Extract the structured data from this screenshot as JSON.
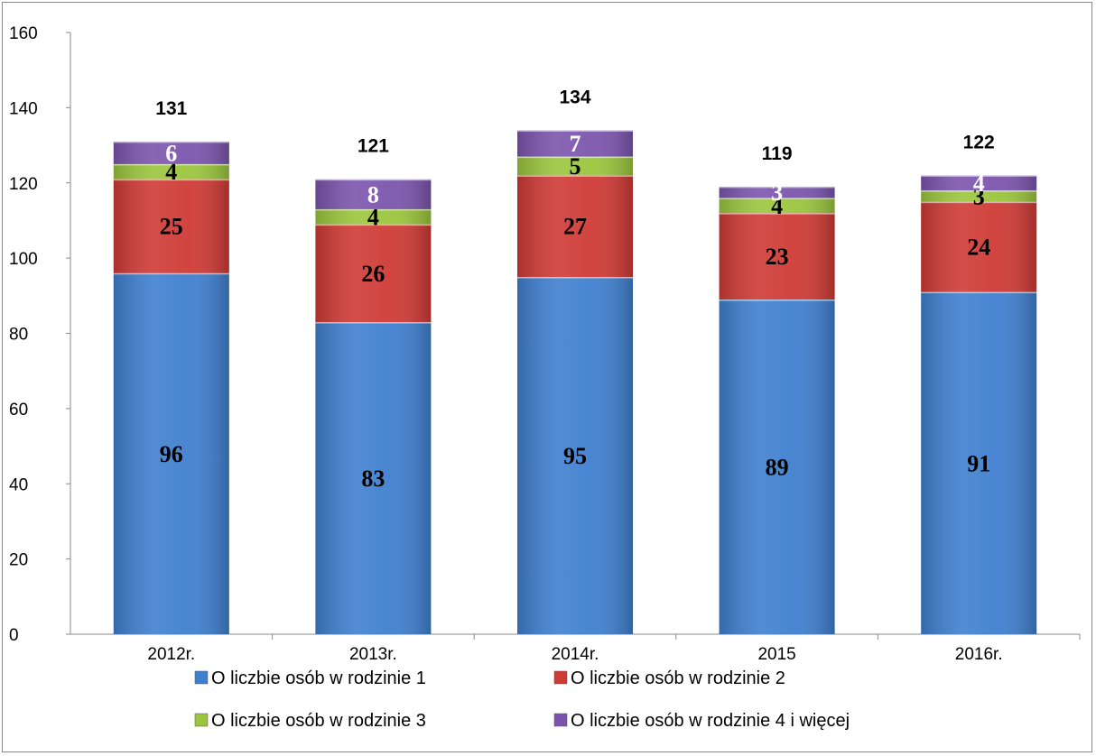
{
  "chart_data": {
    "type": "bar",
    "stacked": true,
    "categories": [
      "2012r.",
      "2013r.",
      "2014r.",
      "2015",
      "2016r."
    ],
    "series": [
      {
        "name": "O liczbie osób w rodzinie 1",
        "values": [
          96,
          83,
          95,
          89,
          91
        ],
        "color": "#3f7fcf",
        "label_color": "#000000"
      },
      {
        "name": "O liczbie osób w rodzinie 2",
        "values": [
          25,
          26,
          27,
          23,
          24
        ],
        "color": "#cf3a35",
        "label_color": "#000000"
      },
      {
        "name": "O liczbie osób w rodzinie 3",
        "values": [
          4,
          4,
          5,
          4,
          3
        ],
        "color": "#9bc53d",
        "label_color": "#000000"
      },
      {
        "name": "O liczbie osób w rodzinie 4 i więcej",
        "values": [
          6,
          8,
          7,
          3,
          4
        ],
        "color": "#7b55ad",
        "label_color": "#ffffff"
      }
    ],
    "totals": [
      131,
      121,
      134,
      119,
      122
    ],
    "ylim": [
      0,
      160
    ],
    "yticks": [
      0,
      20,
      40,
      60,
      80,
      100,
      120,
      140,
      160
    ],
    "grid": false,
    "legend_position": "bottom"
  }
}
